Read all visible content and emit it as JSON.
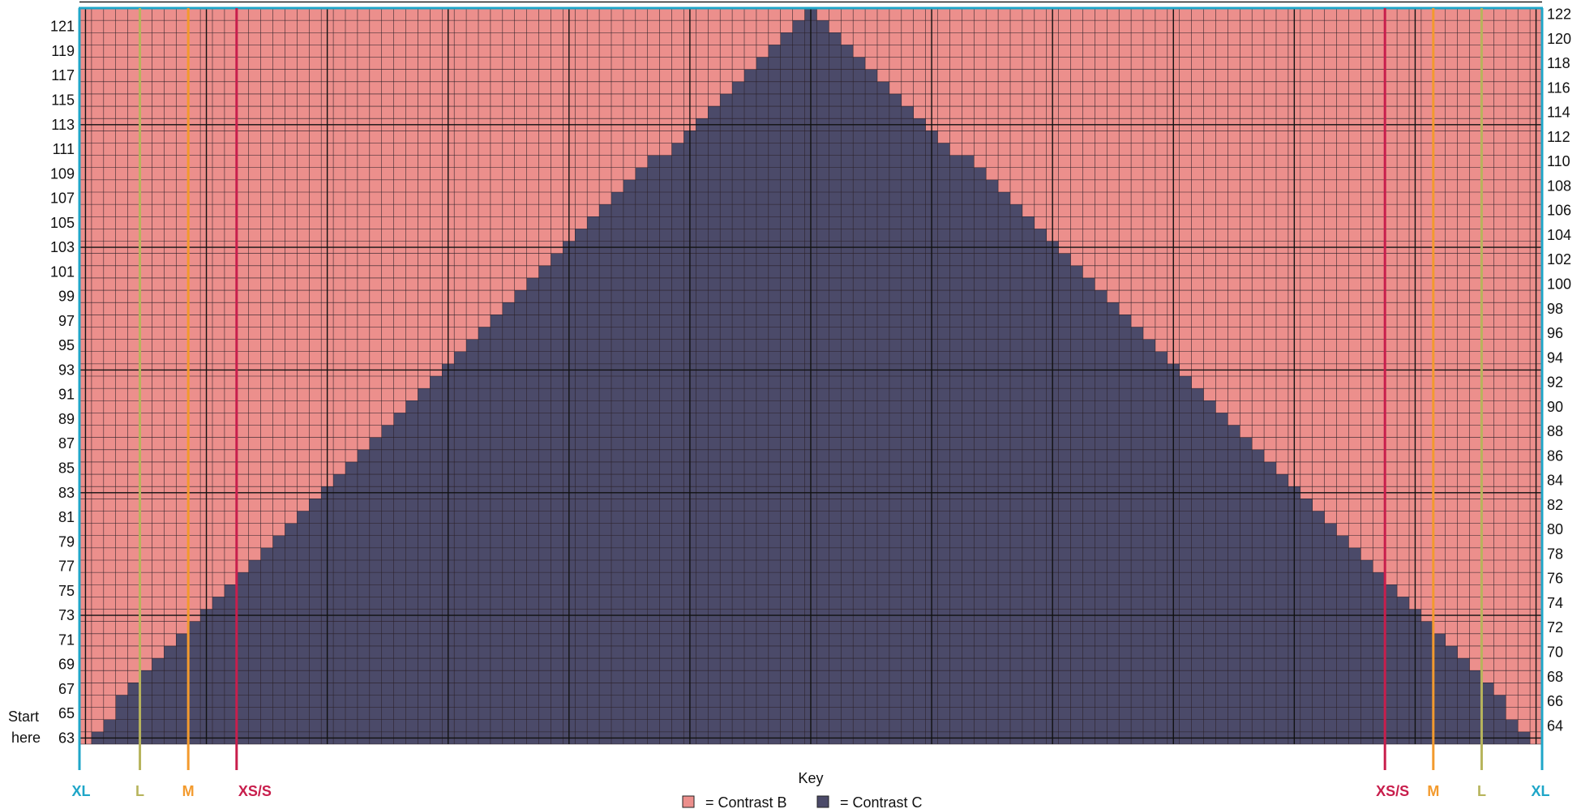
{
  "start_label": [
    "Start",
    "here"
  ],
  "grid": {
    "columns": 121,
    "rows_total": 60,
    "first_row": 63,
    "last_row": 122
  },
  "colors": {
    "contrast_b": "#ec8f8c",
    "contrast_c": "#4b4a69",
    "grid_line": "#2a1f26",
    "border": "#1fa6c8",
    "xs_s": "#c81e4c",
    "m": "#f39a2d",
    "l": "#b7b45c",
    "xl": "#1fa6c8"
  },
  "size_labels": {
    "xl": "XL",
    "l": "L",
    "m": "M",
    "xs_s": "XS/S"
  },
  "key": {
    "title": "Key",
    "contrast_b": "= Contrast B",
    "contrast_c": "= Contrast C"
  },
  "chart_data": {
    "type": "heatmap",
    "description_rows": [
      63,
      64,
      65,
      66,
      67,
      68,
      69,
      70,
      71,
      72,
      73,
      74,
      75,
      76,
      77,
      78,
      79,
      80,
      81,
      82,
      83,
      84,
      85,
      86,
      87,
      88,
      89,
      90,
      91,
      92,
      93,
      94,
      95,
      96,
      97,
      98,
      99,
      100,
      101,
      102,
      103,
      104,
      105,
      106,
      107,
      108,
      109,
      110,
      111,
      112,
      113,
      114,
      115,
      116,
      117,
      118,
      119,
      120,
      121,
      122
    ],
    "left_row_labels": [
      63,
      65,
      67,
      69,
      71,
      73,
      75,
      77,
      79,
      81,
      83,
      85,
      87,
      89,
      91,
      93,
      95,
      97,
      99,
      101,
      103,
      105,
      107,
      109,
      111,
      113,
      115,
      117,
      119,
      121
    ],
    "right_row_labels": [
      64,
      66,
      68,
      70,
      72,
      74,
      76,
      78,
      80,
      82,
      84,
      86,
      88,
      90,
      92,
      94,
      96,
      98,
      100,
      102,
      104,
      106,
      108,
      110,
      112,
      114,
      116,
      118,
      120,
      122
    ],
    "contrast_b_edge_by_row": [
      59,
      58,
      57,
      57,
      56,
      55,
      54,
      53,
      52,
      51,
      50,
      49,
      48,
      47,
      46,
      45,
      44,
      43,
      42,
      41,
      40,
      39,
      38,
      37,
      36,
      35,
      34,
      33,
      32,
      31,
      30,
      29,
      28,
      27,
      26,
      25,
      24,
      23,
      22,
      21,
      20,
      19,
      18,
      17,
      16,
      15,
      14,
      13,
      11,
      10,
      9,
      8,
      7,
      6,
      5,
      4,
      3,
      2,
      1,
      0
    ],
    "size_guides": [
      {
        "label": "XS/S",
        "columns_from_edge": 13
      },
      {
        "label": "M",
        "columns_from_edge": 9
      },
      {
        "label": "L",
        "columns_from_edge": 5
      },
      {
        "label": "XL",
        "columns_from_edge": 0
      }
    ]
  }
}
